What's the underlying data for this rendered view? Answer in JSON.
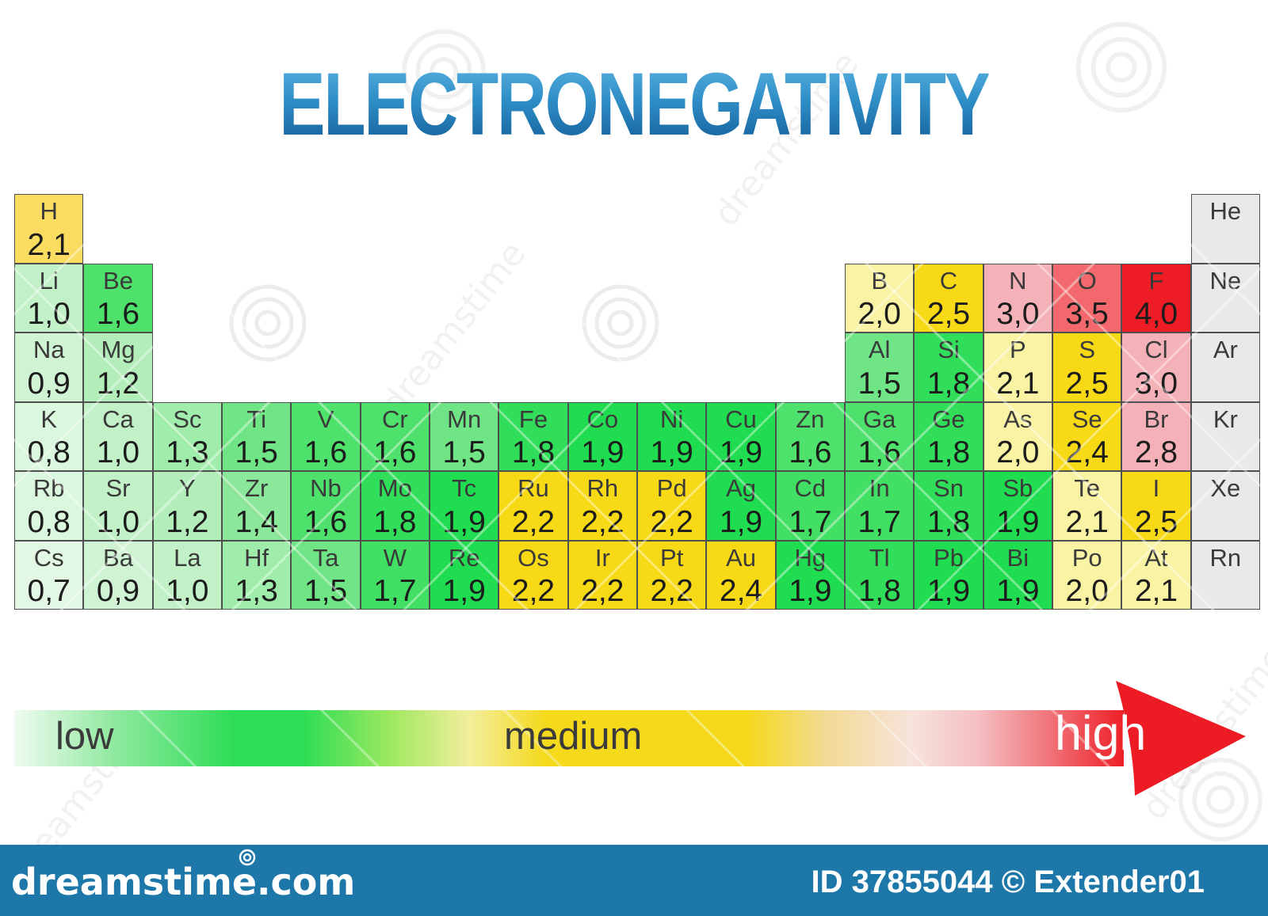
{
  "title": "ELECTRONEGATIVITY",
  "legend": {
    "low": "low",
    "medium": "medium",
    "high": "high"
  },
  "colors": {
    "title_top": "#5AB2E0",
    "title_bottom": "#135D98",
    "scale_low_green": "#2CDD55",
    "scale_medium_gold": "#F5D91B",
    "scale_high_red": "#EE1C25",
    "noble_gray": "#E9E9E9",
    "footer_bar": "#1D78A9",
    "grid_line": "#4F4F4F"
  },
  "watermark": {
    "site": "dreamstime.com",
    "id_text": "ID 37855044 © Extender01"
  },
  "elements": [
    {
      "symbol": "H",
      "value": "2,1",
      "row": 1,
      "col": 1,
      "color": "#FADD60"
    },
    {
      "symbol": "He",
      "value": "",
      "row": 1,
      "col": 18,
      "color": "#E9E9E9"
    },
    {
      "symbol": "Li",
      "value": "1,0",
      "row": 2,
      "col": 1,
      "color": "#C3F1C7"
    },
    {
      "symbol": "Be",
      "value": "1,6",
      "row": 2,
      "col": 2,
      "color": "#4EE16C"
    },
    {
      "symbol": "B",
      "value": "2,0",
      "row": 2,
      "col": 13,
      "color": "#FAF3A4"
    },
    {
      "symbol": "C",
      "value": "2,5",
      "row": 2,
      "col": 14,
      "color": "#F7DA15"
    },
    {
      "symbol": "N",
      "value": "3,0",
      "row": 2,
      "col": 15,
      "color": "#F5B1B8"
    },
    {
      "symbol": "O",
      "value": "3,5",
      "row": 2,
      "col": 16,
      "color": "#F2686D"
    },
    {
      "symbol": "F",
      "value": "4,0",
      "row": 2,
      "col": 17,
      "color": "#EE1C25"
    },
    {
      "symbol": "Ne",
      "value": "",
      "row": 2,
      "col": 18,
      "color": "#E9E9E9"
    },
    {
      "symbol": "Na",
      "value": "0,9",
      "row": 3,
      "col": 1,
      "color": "#D0F4D3"
    },
    {
      "symbol": "Mg",
      "value": "1,2",
      "row": 3,
      "col": 2,
      "color": "#B3EEBA"
    },
    {
      "symbol": "Al",
      "value": "1,5",
      "row": 3,
      "col": 13,
      "color": "#6FE585"
    },
    {
      "symbol": "Si",
      "value": "1,8",
      "row": 3,
      "col": 14,
      "color": "#30DE5A"
    },
    {
      "symbol": "P",
      "value": "2,1",
      "row": 3,
      "col": 15,
      "color": "#FAF3A4"
    },
    {
      "symbol": "S",
      "value": "2,5",
      "row": 3,
      "col": 16,
      "color": "#F7DA15"
    },
    {
      "symbol": "Cl",
      "value": "3,0",
      "row": 3,
      "col": 17,
      "color": "#F5B1B8"
    },
    {
      "symbol": "Ar",
      "value": "",
      "row": 3,
      "col": 18,
      "color": "#E9E9E9"
    },
    {
      "symbol": "K",
      "value": "0,8",
      "row": 4,
      "col": 1,
      "color": "#DBF7DD"
    },
    {
      "symbol": "Ca",
      "value": "1,0",
      "row": 4,
      "col": 2,
      "color": "#C3F1C7"
    },
    {
      "symbol": "Sc",
      "value": "1,3",
      "row": 4,
      "col": 3,
      "color": "#A0ECAB"
    },
    {
      "symbol": "Ti",
      "value": "1,5",
      "row": 4,
      "col": 4,
      "color": "#6FE585"
    },
    {
      "symbol": "V",
      "value": "1,6",
      "row": 4,
      "col": 5,
      "color": "#4EE16C"
    },
    {
      "symbol": "Cr",
      "value": "1,6",
      "row": 4,
      "col": 6,
      "color": "#4EE16C"
    },
    {
      "symbol": "Mn",
      "value": "1,5",
      "row": 4,
      "col": 7,
      "color": "#6FE585"
    },
    {
      "symbol": "Fe",
      "value": "1,8",
      "row": 4,
      "col": 8,
      "color": "#30DE5A"
    },
    {
      "symbol": "Co",
      "value": "1,9",
      "row": 4,
      "col": 9,
      "color": "#20DC50"
    },
    {
      "symbol": "Ni",
      "value": "1,9",
      "row": 4,
      "col": 10,
      "color": "#20DC50"
    },
    {
      "symbol": "Cu",
      "value": "1,9",
      "row": 4,
      "col": 11,
      "color": "#20DC50"
    },
    {
      "symbol": "Zn",
      "value": "1,6",
      "row": 4,
      "col": 12,
      "color": "#4EE16C"
    },
    {
      "symbol": "Ga",
      "value": "1,6",
      "row": 4,
      "col": 13,
      "color": "#4EE16C"
    },
    {
      "symbol": "Ge",
      "value": "1,8",
      "row": 4,
      "col": 14,
      "color": "#30DE5A"
    },
    {
      "symbol": "As",
      "value": "2,0",
      "row": 4,
      "col": 15,
      "color": "#FAF3A4"
    },
    {
      "symbol": "Se",
      "value": "2,4",
      "row": 4,
      "col": 16,
      "color": "#F7DA15"
    },
    {
      "symbol": "Br",
      "value": "2,8",
      "row": 4,
      "col": 17,
      "color": "#F5B1B8"
    },
    {
      "symbol": "Kr",
      "value": "",
      "row": 4,
      "col": 18,
      "color": "#E9E9E9"
    },
    {
      "symbol": "Rb",
      "value": "0,8",
      "row": 5,
      "col": 1,
      "color": "#DBF7DD"
    },
    {
      "symbol": "Sr",
      "value": "1,0",
      "row": 5,
      "col": 2,
      "color": "#C3F1C7"
    },
    {
      "symbol": "Y",
      "value": "1,2",
      "row": 5,
      "col": 3,
      "color": "#B3EEBA"
    },
    {
      "symbol": "Zr",
      "value": "1,4",
      "row": 5,
      "col": 4,
      "color": "#8BE89B"
    },
    {
      "symbol": "Nb",
      "value": "1,6",
      "row": 5,
      "col": 5,
      "color": "#4EE16C"
    },
    {
      "symbol": "Mo",
      "value": "1,8",
      "row": 5,
      "col": 6,
      "color": "#30DE5A"
    },
    {
      "symbol": "Tc",
      "value": "1,9",
      "row": 5,
      "col": 7,
      "color": "#20DC50"
    },
    {
      "symbol": "Ru",
      "value": "2,2",
      "row": 5,
      "col": 8,
      "color": "#F7DA15"
    },
    {
      "symbol": "Rh",
      "value": "2,2",
      "row": 5,
      "col": 9,
      "color": "#F7DA15"
    },
    {
      "symbol": "Pd",
      "value": "2,2",
      "row": 5,
      "col": 10,
      "color": "#F7DA15"
    },
    {
      "symbol": "Ag",
      "value": "1,9",
      "row": 5,
      "col": 11,
      "color": "#20DC50"
    },
    {
      "symbol": "Cd",
      "value": "1,7",
      "row": 5,
      "col": 12,
      "color": "#41E064"
    },
    {
      "symbol": "In",
      "value": "1,7",
      "row": 5,
      "col": 13,
      "color": "#41E064"
    },
    {
      "symbol": "Sn",
      "value": "1,8",
      "row": 5,
      "col": 14,
      "color": "#30DE5A"
    },
    {
      "symbol": "Sb",
      "value": "1,9",
      "row": 5,
      "col": 15,
      "color": "#20DC50"
    },
    {
      "symbol": "Te",
      "value": "2,1",
      "row": 5,
      "col": 16,
      "color": "#FAF3A4"
    },
    {
      "symbol": "I",
      "value": "2,5",
      "row": 5,
      "col": 17,
      "color": "#F7DA15"
    },
    {
      "symbol": "Xe",
      "value": "",
      "row": 5,
      "col": 18,
      "color": "#E9E9E9"
    },
    {
      "symbol": "Cs",
      "value": "0,7",
      "row": 6,
      "col": 1,
      "color": "#E3F8E4"
    },
    {
      "symbol": "Ba",
      "value": "0,9",
      "row": 6,
      "col": 2,
      "color": "#D0F4D3"
    },
    {
      "symbol": "La",
      "value": "1,0",
      "row": 6,
      "col": 3,
      "color": "#C3F1C7"
    },
    {
      "symbol": "Hf",
      "value": "1,3",
      "row": 6,
      "col": 4,
      "color": "#A0ECAB"
    },
    {
      "symbol": "Ta",
      "value": "1,5",
      "row": 6,
      "col": 5,
      "color": "#6FE585"
    },
    {
      "symbol": "W",
      "value": "1,7",
      "row": 6,
      "col": 6,
      "color": "#41E064"
    },
    {
      "symbol": "Re",
      "value": "1,9",
      "row": 6,
      "col": 7,
      "color": "#20DC50"
    },
    {
      "symbol": "Os",
      "value": "2,2",
      "row": 6,
      "col": 8,
      "color": "#F7DA15"
    },
    {
      "symbol": "Ir",
      "value": "2,2",
      "row": 6,
      "col": 9,
      "color": "#F7DA15"
    },
    {
      "symbol": "Pt",
      "value": "2,2",
      "row": 6,
      "col": 10,
      "color": "#F7DA15"
    },
    {
      "symbol": "Au",
      "value": "2,4",
      "row": 6,
      "col": 11,
      "color": "#F7DA15"
    },
    {
      "symbol": "Hg",
      "value": "1,9",
      "row": 6,
      "col": 12,
      "color": "#20DC50"
    },
    {
      "symbol": "Tl",
      "value": "1,8",
      "row": 6,
      "col": 13,
      "color": "#30DE5A"
    },
    {
      "symbol": "Pb",
      "value": "1,9",
      "row": 6,
      "col": 14,
      "color": "#20DC50"
    },
    {
      "symbol": "Bi",
      "value": "1,9",
      "row": 6,
      "col": 15,
      "color": "#20DC50"
    },
    {
      "symbol": "Po",
      "value": "2,0",
      "row": 6,
      "col": 16,
      "color": "#FAF3A4"
    },
    {
      "symbol": "At",
      "value": "2,1",
      "row": 6,
      "col": 17,
      "color": "#FAF3A4"
    },
    {
      "symbol": "Rn",
      "value": "",
      "row": 6,
      "col": 18,
      "color": "#E9E9E9"
    }
  ]
}
